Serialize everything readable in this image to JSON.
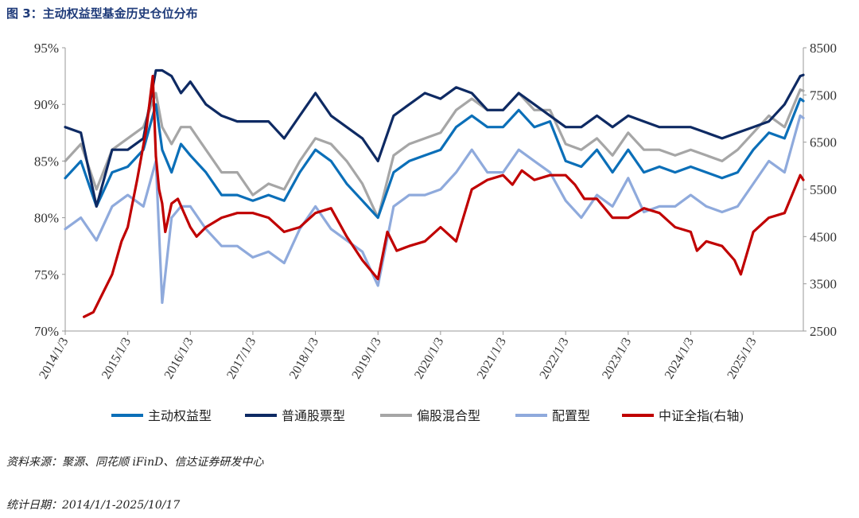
{
  "title": "图 3：主动权益型基金历史仓位分布",
  "source": "资料来源：聚源、同花顺 iFinD、信达证券研发中心",
  "stat_date": "统计日期：2014/1/1-2025/10/17",
  "chart_data": {
    "type": "line",
    "title": "图 3：主动权益型基金历史仓位分布",
    "x_ticks": [
      "2014/1/3",
      "2015/1/3",
      "2016/1/3",
      "2017/1/3",
      "2018/1/3",
      "2019/1/3",
      "2020/1/3",
      "2021/1/3",
      "2022/1/3",
      "2023/1/3",
      "2024/1/3",
      "2025/1/3"
    ],
    "x_range": [
      2014.0,
      2025.8
    ],
    "y_left": {
      "range": [
        70,
        95
      ],
      "ticks": [
        70,
        75,
        80,
        85,
        90,
        95
      ],
      "unit": "%"
    },
    "y_right": {
      "range": [
        2500,
        8500
      ],
      "ticks": [
        2500,
        3500,
        4500,
        5500,
        6500,
        7500,
        8500
      ]
    },
    "grid": false,
    "legend_position": "bottom",
    "series": [
      {
        "name": "主动权益型",
        "axis": "left",
        "color": "#0b6fb8",
        "x": [
          2014.0,
          2014.25,
          2014.5,
          2014.75,
          2015.0,
          2015.25,
          2015.45,
          2015.55,
          2015.7,
          2015.85,
          2016.0,
          2016.25,
          2016.5,
          2016.75,
          2017.0,
          2017.25,
          2017.5,
          2017.75,
          2018.0,
          2018.25,
          2018.5,
          2018.75,
          2019.0,
          2019.25,
          2019.5,
          2019.75,
          2020.0,
          2020.25,
          2020.5,
          2020.75,
          2021.0,
          2021.25,
          2021.5,
          2021.75,
          2022.0,
          2022.25,
          2022.5,
          2022.75,
          2023.0,
          2023.25,
          2023.5,
          2023.75,
          2024.0,
          2024.25,
          2024.5,
          2024.75,
          2025.0,
          2025.25,
          2025.5,
          2025.75,
          2025.8
        ],
        "values": [
          83.5,
          85,
          81,
          84,
          84.5,
          86,
          90,
          86,
          84,
          86.5,
          85.5,
          84,
          82,
          82,
          81.5,
          82,
          81.5,
          84,
          86,
          85,
          83,
          81.5,
          80,
          84,
          85,
          85.5,
          86,
          88,
          89,
          88,
          88,
          89.5,
          88,
          88.5,
          85,
          84.5,
          86,
          84,
          86,
          84,
          84.5,
          84,
          84.5,
          84,
          83.5,
          84,
          86,
          87.5,
          87,
          90.5,
          90.3
        ]
      },
      {
        "name": "普通股票型",
        "axis": "left",
        "color": "#0e2a63",
        "x": [
          2014.0,
          2014.25,
          2014.5,
          2014.75,
          2015.0,
          2015.25,
          2015.45,
          2015.55,
          2015.7,
          2015.85,
          2016.0,
          2016.25,
          2016.5,
          2016.75,
          2017.0,
          2017.25,
          2017.5,
          2017.75,
          2018.0,
          2018.25,
          2018.5,
          2018.75,
          2019.0,
          2019.25,
          2019.5,
          2019.75,
          2020.0,
          2020.25,
          2020.5,
          2020.75,
          2021.0,
          2021.25,
          2021.5,
          2021.75,
          2022.0,
          2022.25,
          2022.5,
          2022.75,
          2023.0,
          2023.25,
          2023.5,
          2023.75,
          2024.0,
          2024.25,
          2024.5,
          2024.75,
          2025.0,
          2025.25,
          2025.5,
          2025.75,
          2025.8
        ],
        "values": [
          88,
          87.5,
          81,
          86,
          86,
          87,
          93,
          93,
          92.5,
          91,
          92,
          90,
          89,
          88.5,
          88.5,
          88.5,
          87,
          89,
          91,
          89,
          88,
          87,
          85,
          89,
          90,
          91,
          90.5,
          91.5,
          91,
          89.5,
          89.5,
          91,
          90,
          89,
          88,
          88,
          89,
          88,
          89,
          88.5,
          88,
          88,
          88,
          87.5,
          87,
          87.5,
          88,
          88.5,
          90,
          92.5,
          92.6
        ]
      },
      {
        "name": "偏股混合型",
        "axis": "left",
        "color": "#a6a6a6",
        "x": [
          2014.0,
          2014.25,
          2014.5,
          2014.75,
          2015.0,
          2015.25,
          2015.45,
          2015.55,
          2015.7,
          2015.85,
          2016.0,
          2016.25,
          2016.5,
          2016.75,
          2017.0,
          2017.25,
          2017.5,
          2017.75,
          2018.0,
          2018.25,
          2018.5,
          2018.75,
          2019.0,
          2019.25,
          2019.5,
          2019.75,
          2020.0,
          2020.25,
          2020.5,
          2020.75,
          2021.0,
          2021.25,
          2021.5,
          2021.75,
          2022.0,
          2022.25,
          2022.5,
          2022.75,
          2023.0,
          2023.25,
          2023.5,
          2023.75,
          2024.0,
          2024.25,
          2024.5,
          2024.75,
          2025.0,
          2025.25,
          2025.5,
          2025.75,
          2025.8
        ],
        "values": [
          85,
          86.5,
          82.5,
          86,
          87,
          88,
          91,
          88,
          86.5,
          88,
          88,
          86,
          84,
          84,
          82,
          83,
          82.5,
          85,
          87,
          86.5,
          85,
          83,
          80,
          85.5,
          86.5,
          87,
          87.5,
          89.5,
          90.5,
          89.5,
          89.5,
          91,
          89.5,
          89.5,
          86.5,
          86,
          87,
          85.5,
          87.5,
          86,
          86,
          85.5,
          86,
          85.5,
          85,
          86,
          87.5,
          89,
          88,
          91.3,
          91.2
        ]
      },
      {
        "name": "配置型",
        "axis": "left",
        "color": "#8faadc",
        "x": [
          2014.0,
          2014.25,
          2014.5,
          2014.75,
          2015.0,
          2015.25,
          2015.45,
          2015.55,
          2015.7,
          2015.85,
          2016.0,
          2016.25,
          2016.5,
          2016.75,
          2017.0,
          2017.25,
          2017.5,
          2017.75,
          2018.0,
          2018.25,
          2018.5,
          2018.75,
          2019.0,
          2019.25,
          2019.5,
          2019.75,
          2020.0,
          2020.25,
          2020.5,
          2020.75,
          2021.0,
          2021.25,
          2021.5,
          2021.75,
          2022.0,
          2022.25,
          2022.5,
          2022.75,
          2023.0,
          2023.25,
          2023.5,
          2023.75,
          2024.0,
          2024.25,
          2024.5,
          2024.75,
          2025.0,
          2025.25,
          2025.5,
          2025.75,
          2025.8
        ],
        "values": [
          79,
          80,
          78,
          81,
          82,
          81,
          85,
          72.5,
          80,
          81,
          81,
          79,
          77.5,
          77.5,
          76.5,
          77,
          76,
          79,
          81,
          79,
          78,
          77,
          74,
          81,
          82,
          82,
          82.5,
          84,
          86,
          84,
          84,
          86,
          85,
          84,
          81.5,
          80,
          82,
          81,
          83.5,
          80.5,
          81,
          81,
          82,
          81,
          80.5,
          81,
          83,
          85,
          84,
          89,
          88.8
        ]
      },
      {
        "name": "中证全指(右轴)",
        "axis": "right",
        "color": "#c00000",
        "x": [
          2014.3,
          2014.45,
          2014.6,
          2014.75,
          2014.9,
          2015.0,
          2015.15,
          2015.3,
          2015.4,
          2015.45,
          2015.5,
          2015.55,
          2015.6,
          2015.7,
          2015.8,
          2016.0,
          2016.1,
          2016.25,
          2016.5,
          2016.75,
          2017.0,
          2017.25,
          2017.5,
          2017.75,
          2018.0,
          2018.25,
          2018.5,
          2018.75,
          2019.0,
          2019.15,
          2019.3,
          2019.5,
          2019.75,
          2020.0,
          2020.25,
          2020.5,
          2020.75,
          2021.0,
          2021.15,
          2021.3,
          2021.5,
          2021.75,
          2022.0,
          2022.15,
          2022.3,
          2022.5,
          2022.75,
          2023.0,
          2023.25,
          2023.5,
          2023.75,
          2024.0,
          2024.1,
          2024.25,
          2024.5,
          2024.7,
          2024.8,
          2025.0,
          2025.25,
          2025.5,
          2025.75,
          2025.8
        ],
        "values": [
          2800,
          2900,
          3300,
          3700,
          4400,
          4700,
          5700,
          6800,
          7900,
          6200,
          5500,
          5200,
          4600,
          5200,
          5300,
          4700,
          4500,
          4700,
          4900,
          5000,
          5000,
          4900,
          4600,
          4700,
          5000,
          5100,
          4500,
          4000,
          3600,
          4600,
          4200,
          4300,
          4400,
          4700,
          4400,
          5500,
          5700,
          5800,
          5600,
          5900,
          5700,
          5800,
          5800,
          5600,
          5300,
          5300,
          4900,
          4900,
          5100,
          5000,
          4700,
          4600,
          4200,
          4400,
          4300,
          4000,
          3700,
          4600,
          4900,
          5000,
          5800,
          5700
        ]
      }
    ]
  }
}
